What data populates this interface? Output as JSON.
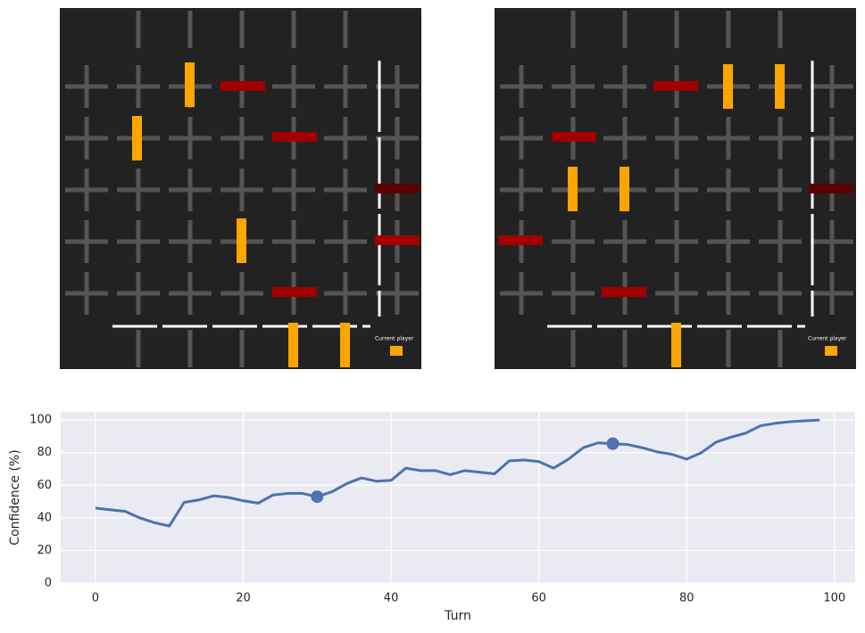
{
  "boards": [
    {
      "label": "Current player"
    },
    {
      "label": "Current player"
    }
  ],
  "chart_data": {
    "type": "line",
    "xlabel": "Turn",
    "ylabel": "Confidence (%)",
    "x": [
      0,
      2,
      4,
      6,
      8,
      10,
      12,
      14,
      16,
      18,
      20,
      22,
      24,
      26,
      28,
      30,
      32,
      34,
      36,
      38,
      40,
      42,
      44,
      46,
      48,
      50,
      52,
      54,
      56,
      58,
      60,
      62,
      64,
      66,
      68,
      70,
      72,
      74,
      76,
      78,
      80,
      82,
      84,
      86,
      88,
      90,
      92,
      94,
      96,
      98
    ],
    "series": [
      {
        "color": "#4c72b0",
        "values": [
          46,
          45,
          44,
          40,
          37,
          35,
          49.5,
          51,
          53.5,
          52.5,
          50.5,
          49,
          54,
          55,
          55,
          53,
          56,
          61,
          64.5,
          62.5,
          63,
          70.5,
          69,
          69,
          66.5,
          69,
          68,
          67,
          75,
          75.5,
          74.5,
          70.5,
          76,
          83,
          86,
          85.5,
          85,
          83,
          80.5,
          79,
          76,
          80,
          86.5,
          89.5,
          92,
          96.5,
          98,
          99,
          99.5,
          100
        ]
      }
    ],
    "highlights": {
      "x": [
        30,
        70
      ],
      "values": [
        53,
        85.5
      ]
    },
    "xlim": [
      -4.7,
      102.8
    ],
    "ylim": [
      0,
      105
    ],
    "xticks": [
      0,
      20,
      40,
      60,
      80,
      100
    ],
    "yticks": [
      0,
      20,
      40,
      60,
      80,
      100
    ],
    "grid": true
  }
}
